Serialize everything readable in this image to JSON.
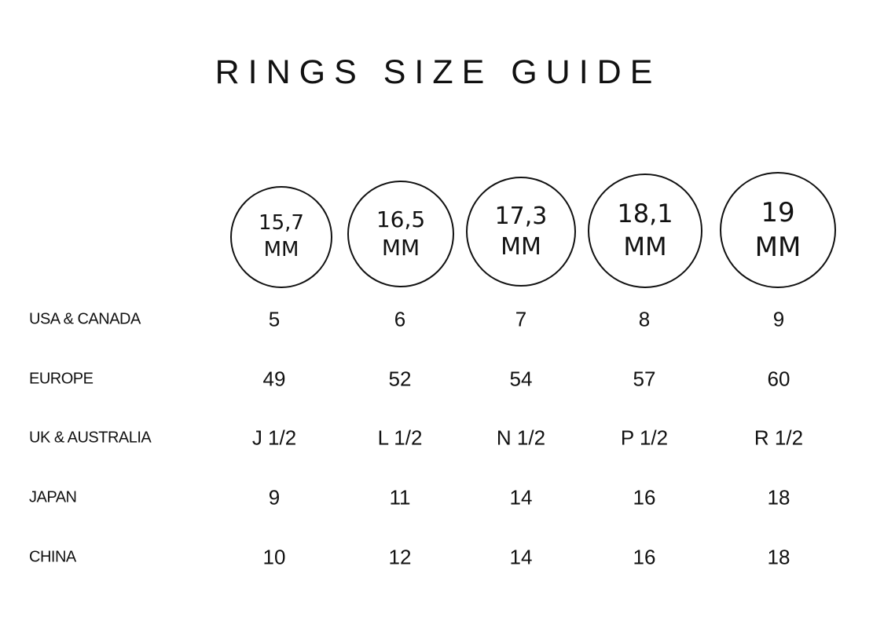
{
  "title": "RINGS SIZE GUIDE",
  "sizes": [
    {
      "value": "15,7",
      "unit": "MM"
    },
    {
      "value": "16,5",
      "unit": "MM"
    },
    {
      "value": "17,3",
      "unit": "MM"
    },
    {
      "value": "18,1",
      "unit": "MM"
    },
    {
      "value": "19",
      "unit": "MM"
    }
  ],
  "rows": [
    {
      "label": "USA & CANADA",
      "values": [
        "5",
        "6",
        "7",
        "8",
        "9"
      ]
    },
    {
      "label": "EUROPE",
      "values": [
        "49",
        "52",
        "54",
        "57",
        "60"
      ]
    },
    {
      "label": "UK & AUSTRALIA",
      "values": [
        "J 1/2",
        "L 1/2",
        "N 1/2",
        "P 1/2",
        "R 1/2"
      ]
    },
    {
      "label": "JAPAN",
      "values": [
        "9",
        "11",
        "14",
        "16",
        "18"
      ]
    },
    {
      "label": "CHINA",
      "values": [
        "10",
        "12",
        "14",
        "16",
        "18"
      ]
    }
  ]
}
